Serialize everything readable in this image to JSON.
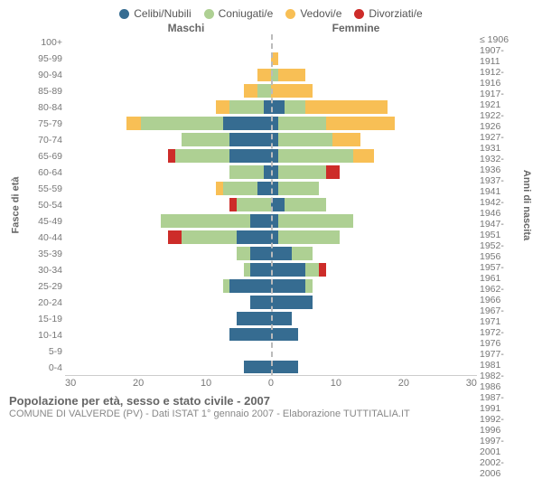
{
  "colors": {
    "celibi": "#366c91",
    "coniugati": "#aed093",
    "vedovi": "#f8bf55",
    "divorziati": "#cd2c29",
    "bg": "#ffffff",
    "axis": "#cccccc",
    "centerline": "#bbbbbb",
    "text": "#666666",
    "ticktext": "#777777"
  },
  "legend": [
    {
      "label": "Celibi/Nubili",
      "colorKey": "celibi"
    },
    {
      "label": "Coniugati/e",
      "colorKey": "coniugati"
    },
    {
      "label": "Vedovi/e",
      "colorKey": "vedovi"
    },
    {
      "label": "Divorziati/e",
      "colorKey": "divorziati"
    }
  ],
  "header": {
    "left": "Maschi",
    "right": "Femmine"
  },
  "yaxis_left_title": "Fasce di età",
  "yaxis_right_title": "Anni di nascita",
  "xaxis": {
    "min": -30,
    "max": 30,
    "ticks": [
      "30",
      "20",
      "10",
      "0",
      "10",
      "20",
      "30"
    ]
  },
  "title": "Popolazione per età, sesso e stato civile - 2007",
  "subtitle": "COMUNE DI VALVERDE (PV) - Dati ISTAT 1° gennaio 2007 - Elaborazione TUTTITALIA.IT",
  "age_labels": [
    "100+",
    "95-99",
    "90-94",
    "85-89",
    "80-84",
    "75-79",
    "70-74",
    "65-69",
    "60-64",
    "55-59",
    "50-54",
    "45-49",
    "40-44",
    "35-39",
    "30-34",
    "25-29",
    "20-24",
    "15-19",
    "10-14",
    "5-9",
    "0-4"
  ],
  "birth_labels": [
    "≤ 1906",
    "1907-1911",
    "1912-1916",
    "1917-1921",
    "1922-1926",
    "1927-1931",
    "1932-1936",
    "1937-1941",
    "1942-1946",
    "1947-1951",
    "1952-1956",
    "1957-1961",
    "1962-1966",
    "1967-1971",
    "1972-1976",
    "1977-1981",
    "1982-1986",
    "1987-1991",
    "1992-1996",
    "1997-2001",
    "2002-2006"
  ],
  "rows": [
    {
      "m": {
        "cel": 0,
        "con": 0,
        "ved": 0,
        "div": 0
      },
      "f": {
        "cel": 0,
        "con": 0,
        "ved": 0,
        "div": 0
      }
    },
    {
      "m": {
        "cel": 0,
        "con": 0,
        "ved": 0,
        "div": 0
      },
      "f": {
        "cel": 0,
        "con": 0,
        "ved": 1,
        "div": 0
      }
    },
    {
      "m": {
        "cel": 0,
        "con": 0,
        "ved": 2,
        "div": 0
      },
      "f": {
        "cel": 0,
        "con": 1,
        "ved": 4,
        "div": 0
      }
    },
    {
      "m": {
        "cel": 0,
        "con": 2,
        "ved": 2,
        "div": 0
      },
      "f": {
        "cel": 0,
        "con": 0,
        "ved": 6,
        "div": 0
      }
    },
    {
      "m": {
        "cel": 1,
        "con": 5,
        "ved": 2,
        "div": 0
      },
      "f": {
        "cel": 2,
        "con": 3,
        "ved": 12,
        "div": 0
      }
    },
    {
      "m": {
        "cel": 7,
        "con": 12,
        "ved": 2,
        "div": 0
      },
      "f": {
        "cel": 1,
        "con": 7,
        "ved": 10,
        "div": 0
      }
    },
    {
      "m": {
        "cel": 6,
        "con": 7,
        "ved": 0,
        "div": 0
      },
      "f": {
        "cel": 1,
        "con": 8,
        "ved": 4,
        "div": 0
      }
    },
    {
      "m": {
        "cel": 6,
        "con": 8,
        "ved": 0,
        "div": 1
      },
      "f": {
        "cel": 1,
        "con": 11,
        "ved": 3,
        "div": 0
      }
    },
    {
      "m": {
        "cel": 1,
        "con": 5,
        "ved": 0,
        "div": 0
      },
      "f": {
        "cel": 1,
        "con": 7,
        "ved": 0,
        "div": 2
      }
    },
    {
      "m": {
        "cel": 2,
        "con": 5,
        "ved": 1,
        "div": 0
      },
      "f": {
        "cel": 1,
        "con": 6,
        "ved": 0,
        "div": 0
      }
    },
    {
      "m": {
        "cel": 0,
        "con": 5,
        "ved": 0,
        "div": 1
      },
      "f": {
        "cel": 2,
        "con": 6,
        "ved": 0,
        "div": 0
      }
    },
    {
      "m": {
        "cel": 3,
        "con": 13,
        "ved": 0,
        "div": 0
      },
      "f": {
        "cel": 1,
        "con": 11,
        "ved": 0,
        "div": 0
      }
    },
    {
      "m": {
        "cel": 5,
        "con": 8,
        "ved": 0,
        "div": 2
      },
      "f": {
        "cel": 1,
        "con": 9,
        "ved": 0,
        "div": 0
      }
    },
    {
      "m": {
        "cel": 3,
        "con": 2,
        "ved": 0,
        "div": 0
      },
      "f": {
        "cel": 3,
        "con": 3,
        "ved": 0,
        "div": 0
      }
    },
    {
      "m": {
        "cel": 3,
        "con": 1,
        "ved": 0,
        "div": 0
      },
      "f": {
        "cel": 5,
        "con": 2,
        "ved": 0,
        "div": 1
      }
    },
    {
      "m": {
        "cel": 6,
        "con": 1,
        "ved": 0,
        "div": 0
      },
      "f": {
        "cel": 5,
        "con": 1,
        "ved": 0,
        "div": 0
      }
    },
    {
      "m": {
        "cel": 3,
        "con": 0,
        "ved": 0,
        "div": 0
      },
      "f": {
        "cel": 6,
        "con": 0,
        "ved": 0,
        "div": 0
      }
    },
    {
      "m": {
        "cel": 5,
        "con": 0,
        "ved": 0,
        "div": 0
      },
      "f": {
        "cel": 3,
        "con": 0,
        "ved": 0,
        "div": 0
      }
    },
    {
      "m": {
        "cel": 6,
        "con": 0,
        "ved": 0,
        "div": 0
      },
      "f": {
        "cel": 4,
        "con": 0,
        "ved": 0,
        "div": 0
      }
    },
    {
      "m": {
        "cel": 0,
        "con": 0,
        "ved": 0,
        "div": 0
      },
      "f": {
        "cel": 0,
        "con": 0,
        "ved": 0,
        "div": 0
      }
    },
    {
      "m": {
        "cel": 4,
        "con": 0,
        "ved": 0,
        "div": 0
      },
      "f": {
        "cel": 4,
        "con": 0,
        "ved": 0,
        "div": 0
      }
    }
  ]
}
